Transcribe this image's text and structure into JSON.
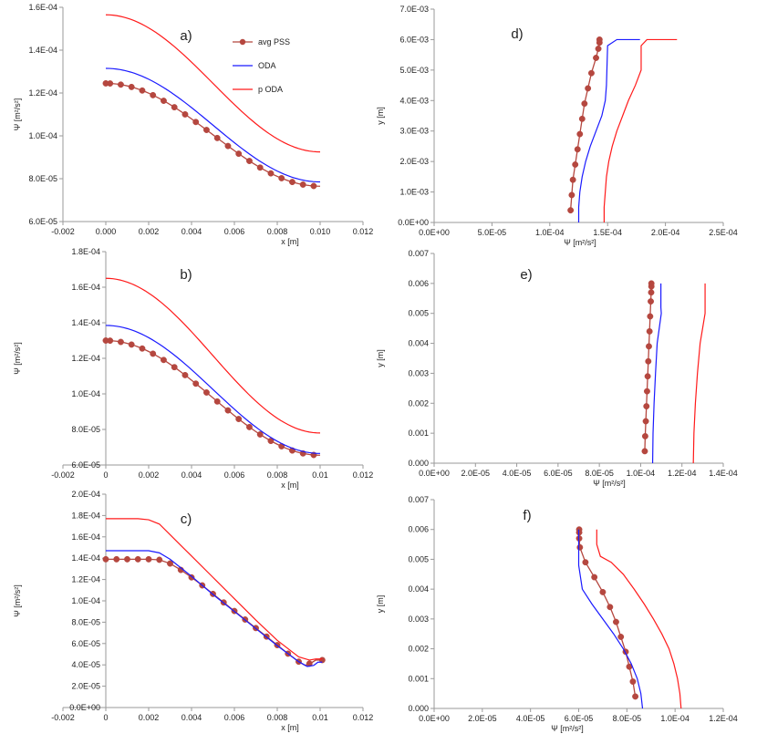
{
  "chart_data": [
    {
      "panel": "a)",
      "type": "line",
      "xlabel": "x [m]",
      "ylabel": "Ψ [m²/s²]",
      "xlim": [
        -0.002,
        0.012
      ],
      "xticks": [
        "-0.002",
        "0.000",
        "0.002",
        "0.004",
        "0.006",
        "0.008",
        "0.010",
        "0.012"
      ],
      "xtick_values": [
        -0.002,
        0,
        0.002,
        0.004,
        0.006,
        0.008,
        0.01,
        0.012
      ],
      "ylim": [
        6e-05,
        0.00016
      ],
      "yticks": [
        "6.0E-05",
        "8.0E-05",
        "1.0E-04",
        "1.2E-04",
        "1.4E-04",
        "1.6E-04"
      ],
      "ytick_values": [
        6e-05,
        8e-05,
        0.0001,
        0.00012,
        0.00014,
        0.00016
      ],
      "legend": {
        "entries": [
          "avg PSS",
          "ODA",
          "p ODA"
        ],
        "position": "top-right"
      },
      "series": [
        {
          "name": "avg PSS",
          "profile": "cos",
          "from": 0,
          "to": 0.01,
          "start": 0.0001245,
          "end": 7.65e-05,
          "marker": true,
          "start_marker": 0.0002
        },
        {
          "name": "ODA",
          "profile": "cos",
          "from": 0,
          "to": 0.01,
          "start": 0.0001315,
          "end": 7.85e-05
        },
        {
          "name": "p ODA",
          "profile": "cos",
          "from": 0,
          "to": 0.01,
          "start": 0.0001565,
          "end": 9.25e-05
        }
      ]
    },
    {
      "panel": "b)",
      "type": "line",
      "xlabel": "x [m]",
      "ylabel": "Ψ [m²/s²]",
      "xlim": [
        -0.002,
        0.012
      ],
      "xticks": [
        "-0.002",
        "0",
        "0.002",
        "0.004",
        "0.006",
        "0.008",
        "0.01",
        "0.012"
      ],
      "xtick_values": [
        -0.002,
        0,
        0.002,
        0.004,
        0.006,
        0.008,
        0.01,
        0.012
      ],
      "ylim": [
        6e-05,
        0.00018
      ],
      "yticks": [
        "6.0E-05",
        "8.0E-05",
        "1.0E-04",
        "1.2E-04",
        "1.4E-04",
        "1.6E-04",
        "1.8E-04"
      ],
      "ytick_values": [
        6e-05,
        8e-05,
        0.0001,
        0.00012,
        0.00014,
        0.00016,
        0.00018
      ],
      "series": [
        {
          "name": "avg PSS",
          "profile": "cos",
          "from": 0,
          "to": 0.01,
          "start": 0.00013,
          "end": 6.55e-05,
          "marker": true,
          "start_marker": 0.0002
        },
        {
          "name": "ODA",
          "profile": "cos",
          "from": 0,
          "to": 0.01,
          "start": 0.0001385,
          "end": 6.65e-05
        },
        {
          "name": "p ODA",
          "profile": "cos",
          "from": 0,
          "to": 0.01,
          "start": 0.000165,
          "end": 7.8e-05
        }
      ]
    },
    {
      "panel": "c)",
      "type": "line",
      "xlabel": "x [m]",
      "ylabel": "Ψ [m²/s²]",
      "xlim": [
        -0.002,
        0.012
      ],
      "xticks": [
        "-0.002",
        "0",
        "0.002",
        "0.004",
        "0.006",
        "0.008",
        "0.01",
        "0.012"
      ],
      "xtick_values": [
        -0.002,
        0,
        0.002,
        0.004,
        0.006,
        0.008,
        0.01,
        0.012
      ],
      "ylim": [
        0,
        0.0002
      ],
      "yticks": [
        "0.0E+00",
        "2.0E-05",
        "4.0E-05",
        "6.0E-05",
        "8.0E-05",
        "1.0E-04",
        "1.2E-04",
        "1.4E-04",
        "1.6E-04",
        "1.8E-04",
        "2.0E-04"
      ],
      "ytick_values": [
        0,
        2e-05,
        4e-05,
        6e-05,
        8e-05,
        0.0001,
        0.00012,
        0.00014,
        0.00016,
        0.00018,
        0.0002
      ],
      "series": [
        {
          "name": "avg PSS",
          "x": [
            0,
            0.0005,
            0.001,
            0.0015,
            0.002,
            0.0025,
            0.003,
            0.0035,
            0.004,
            0.0045,
            0.005,
            0.0055,
            0.006,
            0.0065,
            0.007,
            0.0075,
            0.008,
            0.0085,
            0.009,
            0.0093,
            0.0096,
            0.0098,
            0.0101
          ],
          "y": [
            0.000139,
            0.000139,
            0.000139,
            0.000139,
            0.000139,
            0.0001385,
            0.000135,
            0.000129,
            0.000122,
            0.0001145,
            0.0001065,
            9.85e-05,
            9.05e-05,
            8.25e-05,
            7.45e-05,
            6.65e-05,
            5.85e-05,
            5.05e-05,
            4.3e-05,
            3.95e-05,
            4.2e-05,
            4.45e-05,
            4.45e-05
          ],
          "marker": true,
          "start_marker": 0.0002
        },
        {
          "name": "ODA",
          "x": [
            0,
            0.0005,
            0.001,
            0.0015,
            0.002,
            0.0025,
            0.003,
            0.0035,
            0.004,
            0.005,
            0.006,
            0.007,
            0.008,
            0.009,
            0.0094,
            0.0097,
            0.0099,
            0.0101
          ],
          "y": [
            0.000147,
            0.000147,
            0.000147,
            0.000147,
            0.000147,
            0.000145,
            0.000139,
            0.000131,
            0.000123,
            0.000106,
            9e-05,
            7.4e-05,
            5.8e-05,
            4.3e-05,
            3.85e-05,
            3.95e-05,
            4.25e-05,
            4.25e-05
          ],
          "marker": false
        },
        {
          "name": "p ODA",
          "x": [
            0,
            0.0005,
            0.001,
            0.0015,
            0.002,
            0.0025,
            0.003,
            0.0035,
            0.004,
            0.005,
            0.006,
            0.007,
            0.008,
            0.009,
            0.0095,
            0.0098,
            0.0101
          ],
          "y": [
            0.000177,
            0.000177,
            0.000177,
            0.000177,
            0.000176,
            0.000172,
            0.000162,
            0.000152,
            0.000142,
            0.000122,
            0.000102,
            8.2e-05,
            6.3e-05,
            4.75e-05,
            4.45e-05,
            4.55e-05,
            4.55e-05
          ],
          "marker": false
        }
      ]
    },
    {
      "panel": "d)",
      "type": "line",
      "xlabel": "Ψ [m²/s²]",
      "ylabel": "y [m]",
      "xlim": [
        0,
        0.00025
      ],
      "xticks": [
        "0.0E+00",
        "5.0E-05",
        "1.0E-04",
        "1.5E-04",
        "2.0E-04",
        "2.5E-04"
      ],
      "xtick_values": [
        0,
        5e-05,
        0.0001,
        0.00015,
        0.0002,
        0.00025
      ],
      "ylim": [
        0,
        0.007
      ],
      "yticks": [
        "0.0E+00",
        "1.0E-03",
        "2.0E-03",
        "3.0E-03",
        "4.0E-03",
        "5.0E-03",
        "6.0E-03",
        "7.0E-03"
      ],
      "ytick_values": [
        0,
        0.001,
        0.002,
        0.003,
        0.004,
        0.005,
        0.006,
        0.007
      ],
      "series": [
        {
          "name": "avg PSS",
          "x": [
            0.000118,
            0.000119,
            0.00012,
            0.000122,
            0.000124,
            0.000126,
            0.000128,
            0.00013,
            0.000133,
            0.000136,
            0.00014,
            0.000142,
            0.000143,
            0.000143
          ],
          "y": [
            0.0004,
            0.0009,
            0.0014,
            0.0019,
            0.0024,
            0.0029,
            0.0034,
            0.0039,
            0.0044,
            0.0049,
            0.0054,
            0.0057,
            0.0059,
            0.006
          ],
          "marker": true
        },
        {
          "name": "ODA",
          "x": [
            0.000125,
            0.000125,
            0.000126,
            0.000128,
            0.000131,
            0.000135,
            0.00014,
            0.000145,
            0.000148,
            0.000149,
            0.00015,
            0.000158,
            0.000178
          ],
          "y": [
            0,
            0.0005,
            0.001,
            0.0015,
            0.002,
            0.0025,
            0.003,
            0.0035,
            0.004,
            0.0045,
            0.0058,
            0.006,
            0.006
          ],
          "marker": false
        },
        {
          "name": "p ODA",
          "x": [
            0.000147,
            0.000147,
            0.000148,
            0.000149,
            0.000151,
            0.000154,
            0.000158,
            0.000163,
            0.000168,
            0.000174,
            0.000179,
            0.000179,
            0.000184,
            0.00021
          ],
          "y": [
            0,
            0.0005,
            0.001,
            0.0015,
            0.002,
            0.0025,
            0.003,
            0.0035,
            0.004,
            0.0045,
            0.005,
            0.0058,
            0.006,
            0.006
          ],
          "marker": false
        }
      ]
    },
    {
      "panel": "e)",
      "type": "line",
      "xlabel": "Ψ [m²/s²]",
      "ylabel": "y [m]",
      "xlim": [
        0,
        0.00014
      ],
      "xticks": [
        "0.0E+00",
        "2.0E-05",
        "4.0E-05",
        "6.0E-05",
        "8.0E-05",
        "1.0E-04",
        "1.2E-04",
        "1.4E-04"
      ],
      "xtick_values": [
        0,
        2e-05,
        4e-05,
        6e-05,
        8e-05,
        0.0001,
        0.00012,
        0.00014
      ],
      "ylim": [
        0,
        0.007
      ],
      "yticks": [
        "0.000",
        "0.001",
        "0.002",
        "0.003",
        "0.004",
        "0.005",
        "0.006",
        "0.007"
      ],
      "ytick_values": [
        0,
        0.001,
        0.002,
        0.003,
        0.004,
        0.005,
        0.006,
        0.007
      ],
      "series": [
        {
          "name": "avg PSS",
          "x": [
            0.000102,
            0.0001022,
            0.0001025,
            0.0001028,
            0.0001031,
            0.0001034,
            0.0001037,
            0.000104,
            0.0001043,
            0.0001046,
            0.0001049,
            0.0001051,
            0.0001052,
            0.0001052
          ],
          "y": [
            0.0004,
            0.0009,
            0.0014,
            0.0019,
            0.0024,
            0.0029,
            0.0034,
            0.0039,
            0.0044,
            0.0049,
            0.0054,
            0.0057,
            0.0059,
            0.006
          ],
          "marker": true
        },
        {
          "name": "ODA",
          "x": [
            0.0001058,
            0.000106,
            0.0001065,
            0.0001072,
            0.000108,
            0.000109,
            0.00011,
            0.0001098,
            0.0001098
          ],
          "y": [
            0,
            0.001,
            0.002,
            0.003,
            0.004,
            0.0045,
            0.005,
            0.0052,
            0.006
          ],
          "marker": false
        },
        {
          "name": "p ODA",
          "x": [
            0.0001255,
            0.0001258,
            0.0001265,
            0.0001275,
            0.0001288,
            0.00013,
            0.0001312,
            0.0001312
          ],
          "y": [
            0,
            0.001,
            0.002,
            0.003,
            0.004,
            0.0045,
            0.005,
            0.006
          ],
          "marker": false
        }
      ]
    },
    {
      "panel": "f)",
      "type": "line",
      "xlabel": "Ψ [m²/s²]",
      "ylabel": "y [m]",
      "xlim": [
        0,
        0.00012
      ],
      "xticks": [
        "0.0E+00",
        "2.0E-05",
        "4.0E-05",
        "6.0E-05",
        "8.0E-05",
        "1.0E-04",
        "1.2E-04"
      ],
      "xtick_values": [
        0,
        2e-05,
        4e-05,
        6e-05,
        8e-05,
        0.0001,
        0.00012
      ],
      "ylim": [
        0,
        0.007
      ],
      "yticks": [
        "0.000",
        "0.001",
        "0.002",
        "0.003",
        "0.004",
        "0.005",
        "0.006",
        "0.007"
      ],
      "ytick_values": [
        0,
        0.001,
        0.002,
        0.003,
        0.004,
        0.005,
        0.006,
        0.007
      ],
      "series": [
        {
          "name": "avg PSS",
          "x": [
            8.35e-05,
            8.25e-05,
            8.1e-05,
            7.95e-05,
            7.75e-05,
            7.55e-05,
            7.3e-05,
            7e-05,
            6.65e-05,
            6.28e-05,
            6.05e-05,
            6.02e-05,
            6.02e-05,
            6.02e-05
          ],
          "y": [
            0.0004,
            0.0009,
            0.0014,
            0.0019,
            0.0024,
            0.0029,
            0.0034,
            0.0039,
            0.0044,
            0.0049,
            0.0054,
            0.0057,
            0.0059,
            0.006
          ],
          "marker": true
        },
        {
          "name": "ODA",
          "x": [
            8.65e-05,
            8.58e-05,
            8.43e-05,
            8.18e-05,
            7.85e-05,
            7.45e-05,
            7e-05,
            6.55e-05,
            6.15e-05,
            6e-05,
            6e-05,
            6e-05
          ],
          "y": [
            0,
            0.0005,
            0.001,
            0.0015,
            0.002,
            0.0025,
            0.003,
            0.0035,
            0.004,
            0.0048,
            0.0052,
            0.006
          ],
          "marker": false
        },
        {
          "name": "p ODA",
          "x": [
            0.0001025,
            0.000102,
            0.000101,
            9.95e-05,
            9.75e-05,
            9.45e-05,
            9.1e-05,
            8.72e-05,
            8.3e-05,
            7.85e-05,
            7.35e-05,
            6.9e-05,
            6.75e-05,
            6.75e-05
          ],
          "y": [
            0,
            0.0005,
            0.001,
            0.0015,
            0.002,
            0.0025,
            0.003,
            0.0035,
            0.004,
            0.0045,
            0.0049,
            0.0051,
            0.0055,
            0.006
          ],
          "marker": false
        }
      ]
    }
  ],
  "colors": {
    "avg PSS": "#b5473f",
    "ODA": "#1a1aff",
    "p ODA": "#ff1a1a",
    "axis": "#9a9a9a"
  }
}
